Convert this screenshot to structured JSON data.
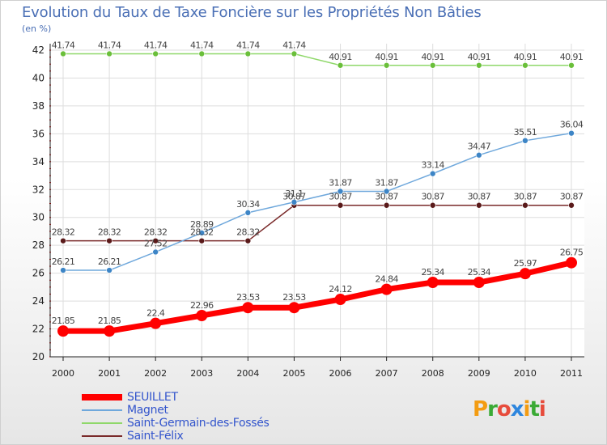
{
  "title": "Evolution du Taux de Taxe Foncière sur les Propriétés Non Bâties",
  "unit_label": "(en %)",
  "logo": {
    "text": "Proxiti",
    "colors": [
      "#f39c12",
      "#3aaa35",
      "#e74c3c",
      "#2e86de",
      "#f39c12",
      "#3aaa35",
      "#e74c3c"
    ]
  },
  "chart_data": {
    "type": "line",
    "x": [
      "2000",
      "2001",
      "2002",
      "2003",
      "2004",
      "2005",
      "2006",
      "2007",
      "2008",
      "2009",
      "2010",
      "2011"
    ],
    "ylim": [
      20,
      42
    ],
    "yticks": [
      20,
      22,
      24,
      26,
      28,
      30,
      32,
      34,
      36,
      38,
      40,
      42
    ],
    "grid": true,
    "legend_position": "bottom-left",
    "series": [
      {
        "name": "SEUILLET",
        "color": "#ff0000",
        "width": 7,
        "marker": 7,
        "values": [
          21.85,
          21.85,
          22.4,
          22.96,
          23.53,
          23.53,
          24.12,
          24.84,
          25.34,
          25.34,
          25.97,
          26.75
        ],
        "labels": [
          "21.85",
          "21.85",
          "22.4",
          "22.96",
          "23.53",
          "23.53",
          "24.12",
          "24.84",
          "25.34",
          "25.34",
          "25.97",
          "26.75"
        ]
      },
      {
        "name": "Magnet",
        "color": "#6fa8dc",
        "width": 1.5,
        "marker": 3.5,
        "marker_color": "#3d85c6",
        "values": [
          26.21,
          26.21,
          27.52,
          28.89,
          30.34,
          31.1,
          31.87,
          31.87,
          33.14,
          34.47,
          35.51,
          36.04
        ],
        "labels": [
          "26.21",
          "26.21",
          "27.52",
          "28.89",
          "30.34",
          "31.1",
          "31.87",
          "31.87",
          "33.14",
          "34.47",
          "35.51",
          "36.04"
        ]
      },
      {
        "name": "Saint-Germain-des-Fossés",
        "color": "#8fd86a",
        "width": 1.5,
        "marker": 3.5,
        "marker_color": "#6abf3a",
        "values": [
          41.74,
          41.74,
          41.74,
          41.74,
          41.74,
          41.74,
          40.91,
          40.91,
          40.91,
          40.91,
          40.91,
          40.91
        ],
        "labels": [
          "41.74",
          "41.74",
          "41.74",
          "41.74",
          "41.74",
          "41.74",
          "40.91",
          "40.91",
          "40.91",
          "40.91",
          "40.91",
          "40.91"
        ]
      },
      {
        "name": "Saint-Félix",
        "color": "#7a2a2a",
        "width": 1.5,
        "marker": 3.5,
        "marker_color": "#5a1a1a",
        "values": [
          28.32,
          28.32,
          28.32,
          28.32,
          28.32,
          30.87,
          30.87,
          30.87,
          30.87,
          30.87,
          30.87,
          30.87
        ],
        "labels": [
          "28.32",
          "28.32",
          "28.32",
          "28.32",
          "28.32",
          "30.87",
          "30.87",
          "30.87",
          "30.87",
          "30.87",
          "30.87",
          "30.87"
        ]
      }
    ]
  }
}
